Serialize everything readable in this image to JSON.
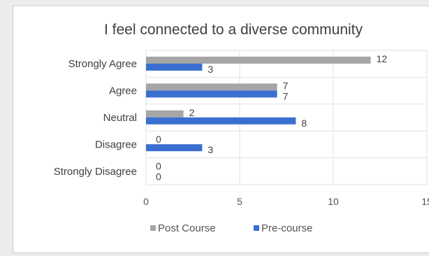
{
  "chart_data": {
    "type": "bar",
    "orientation": "horizontal",
    "title": "I feel connected to a diverse community",
    "categories": [
      "Strongly Agree",
      "Agree",
      "Neutral",
      "Disagree",
      "Strongly Disagree"
    ],
    "series": [
      {
        "name": "Post Course",
        "color": "#a6a6a6",
        "values": [
          12,
          7,
          2,
          0,
          0
        ]
      },
      {
        "name": "Pre-course",
        "color": "#3a6fd0",
        "values": [
          3,
          7,
          8,
          3,
          0
        ]
      }
    ],
    "xlim": [
      0,
      15
    ],
    "xticks": [
      "0",
      "5",
      "10",
      "15"
    ],
    "xlabel": "",
    "ylabel": "",
    "grid": true,
    "legend": "bottom"
  }
}
